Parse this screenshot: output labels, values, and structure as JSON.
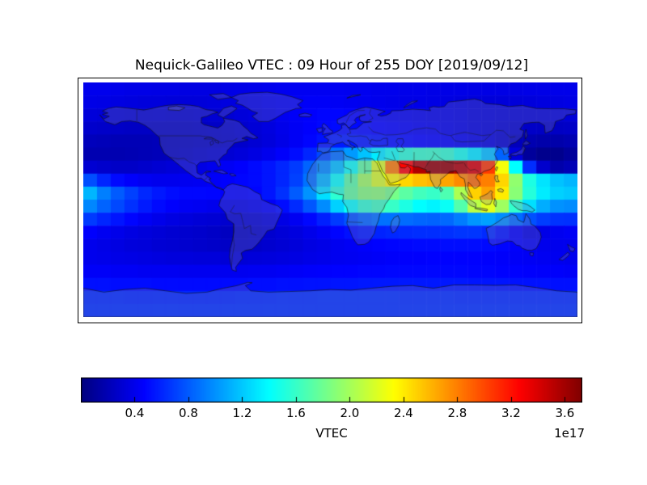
{
  "figure": {
    "title": "Nequick-Galileo VTEC : 09 Hour of 255 DOY [2019/09/12]",
    "background_color": "#ffffff"
  },
  "chart_data": {
    "type": "heatmap",
    "title": "Nequick-Galileo VTEC : 09 Hour of 255 DOY [2019/09/12]",
    "model": "Nequick-Galileo",
    "quantity": "VTEC",
    "hour": "09",
    "day_of_year": "255",
    "date": "2019/09/12",
    "projection": "equirectangular",
    "map_extent": {
      "lon": [
        -180,
        180
      ],
      "lat": [
        -90,
        90
      ]
    },
    "colormap": "jet",
    "vmin": 0,
    "vmax": 3.73,
    "scale_factor": "1e17",
    "legend_position": "bottom",
    "grid_lines": false,
    "colorbar": {
      "orientation": "horizontal",
      "label": "VTEC",
      "offset_text": "1e17",
      "ticks": [
        0.4,
        0.8,
        1.2,
        1.6,
        2.0,
        2.4,
        2.8,
        3.2,
        3.6
      ],
      "tick_labels": [
        "0.4",
        "0.8",
        "1.2",
        "1.6",
        "2.0",
        "2.4",
        "2.8",
        "3.2",
        "3.6"
      ]
    },
    "grid": {
      "description": "VTEC values (x1e17) on 10-degree cells; rows north to south (lat centers 85..-85), cols west to east (lon centers -175..175)",
      "lon_center_start": -175,
      "lon_step": 10,
      "lat_center_start": 85,
      "lat_step": -10,
      "values": [
        [
          0.4,
          0.4,
          0.39,
          0.38,
          0.38,
          0.37,
          0.37,
          0.36,
          0.36,
          0.36,
          0.37,
          0.38,
          0.39,
          0.4,
          0.41,
          0.42,
          0.42,
          0.42,
          0.42,
          0.41,
          0.41,
          0.4,
          0.4,
          0.39,
          0.39,
          0.38,
          0.38,
          0.38,
          0.37,
          0.37,
          0.37,
          0.37,
          0.38,
          0.38,
          0.39,
          0.39
        ],
        [
          0.38,
          0.37,
          0.36,
          0.35,
          0.34,
          0.34,
          0.33,
          0.33,
          0.33,
          0.34,
          0.35,
          0.36,
          0.38,
          0.4,
          0.42,
          0.43,
          0.44,
          0.44,
          0.43,
          0.42,
          0.41,
          0.4,
          0.39,
          0.38,
          0.38,
          0.37,
          0.36,
          0.35,
          0.34,
          0.33,
          0.33,
          0.33,
          0.34,
          0.35,
          0.36,
          0.37
        ],
        [
          0.33,
          0.32,
          0.31,
          0.3,
          0.29,
          0.29,
          0.28,
          0.28,
          0.29,
          0.3,
          0.31,
          0.33,
          0.35,
          0.38,
          0.41,
          0.44,
          0.46,
          0.48,
          0.48,
          0.47,
          0.45,
          0.43,
          0.41,
          0.4,
          0.39,
          0.38,
          0.37,
          0.36,
          0.34,
          0.33,
          0.32,
          0.31,
          0.31,
          0.31,
          0.32,
          0.32
        ],
        [
          0.28,
          0.27,
          0.26,
          0.25,
          0.25,
          0.24,
          0.24,
          0.24,
          0.25,
          0.26,
          0.27,
          0.29,
          0.32,
          0.35,
          0.39,
          0.43,
          0.46,
          0.49,
          0.5,
          0.5,
          0.49,
          0.47,
          0.45,
          0.43,
          0.41,
          0.4,
          0.38,
          0.36,
          0.34,
          0.32,
          0.3,
          0.28,
          0.26,
          0.25,
          0.25,
          0.26
        ],
        [
          0.22,
          0.21,
          0.2,
          0.2,
          0.2,
          0.21,
          0.22,
          0.23,
          0.24,
          0.25,
          0.26,
          0.28,
          0.31,
          0.34,
          0.38,
          0.43,
          0.48,
          0.53,
          0.56,
          0.56,
          0.55,
          0.53,
          0.51,
          0.49,
          0.47,
          0.45,
          0.43,
          0.4,
          0.37,
          0.33,
          0.28,
          0.22,
          0.18,
          0.16,
          0.16,
          0.18
        ],
        [
          0.18,
          0.18,
          0.18,
          0.19,
          0.2,
          0.21,
          0.23,
          0.25,
          0.27,
          0.29,
          0.31,
          0.33,
          0.36,
          0.4,
          0.45,
          0.51,
          0.6,
          0.73,
          0.88,
          1.03,
          1.18,
          1.33,
          1.46,
          1.56,
          1.6,
          1.61,
          1.58,
          1.48,
          1.33,
          1.18,
          0.83,
          0.33,
          0.1,
          0.05,
          0.05,
          0.1
        ],
        [
          0.3,
          0.28,
          0.26,
          0.26,
          0.28,
          0.3,
          0.32,
          0.34,
          0.37,
          0.4,
          0.43,
          0.46,
          0.5,
          0.54,
          0.6,
          0.68,
          0.83,
          0.98,
          1.18,
          1.45,
          1.75,
          2.2,
          2.8,
          3.25,
          3.55,
          3.65,
          3.65,
          3.55,
          3.4,
          3.05,
          2.3,
          1.4,
          0.63,
          0.28,
          0.16,
          0.2
        ],
        [
          0.75,
          0.6,
          0.5,
          0.45,
          0.42,
          0.4,
          0.4,
          0.41,
          0.42,
          0.44,
          0.46,
          0.48,
          0.5,
          0.54,
          0.6,
          0.7,
          0.88,
          1.13,
          1.43,
          1.73,
          1.98,
          2.18,
          2.36,
          2.48,
          2.56,
          2.6,
          2.66,
          2.76,
          2.86,
          2.8,
          2.48,
          1.93,
          1.5,
          1.3,
          1.18,
          1.13
        ],
        [
          1.13,
          0.93,
          0.8,
          0.7,
          0.61,
          0.55,
          0.51,
          0.49,
          0.49,
          0.48,
          0.46,
          0.45,
          0.48,
          0.54,
          0.64,
          0.8,
          1.0,
          1.28,
          1.56,
          1.76,
          1.88,
          1.9,
          1.83,
          1.73,
          1.64,
          1.6,
          1.68,
          2.03,
          2.5,
          2.68,
          2.4,
          1.9,
          1.53,
          1.33,
          1.23,
          1.2
        ],
        [
          0.96,
          0.83,
          0.73,
          0.64,
          0.56,
          0.5,
          0.46,
          0.43,
          0.42,
          0.4,
          0.38,
          0.38,
          0.4,
          0.44,
          0.51,
          0.62,
          0.78,
          0.98,
          1.23,
          1.43,
          1.58,
          1.64,
          1.6,
          1.5,
          1.4,
          1.36,
          1.43,
          1.7,
          2.08,
          2.23,
          1.98,
          1.58,
          1.28,
          1.1,
          1.0,
          0.98
        ],
        [
          0.68,
          0.6,
          0.54,
          0.48,
          0.43,
          0.39,
          0.36,
          0.34,
          0.32,
          0.31,
          0.29,
          0.29,
          0.3,
          0.33,
          0.37,
          0.42,
          0.49,
          0.58,
          0.68,
          0.77,
          0.84,
          0.88,
          0.88,
          0.86,
          0.84,
          0.83,
          0.85,
          0.92,
          1.01,
          1.05,
          0.98,
          0.86,
          0.76,
          0.69,
          0.65,
          0.64
        ],
        [
          0.46,
          0.42,
          0.39,
          0.36,
          0.34,
          0.32,
          0.3,
          0.29,
          0.28,
          0.26,
          0.24,
          0.24,
          0.26,
          0.29,
          0.32,
          0.35,
          0.39,
          0.43,
          0.48,
          0.52,
          0.56,
          0.59,
          0.61,
          0.62,
          0.63,
          0.63,
          0.64,
          0.66,
          0.66,
          0.62,
          0.54,
          0.44,
          0.36,
          0.38,
          0.41,
          0.43
        ],
        [
          0.4,
          0.38,
          0.36,
          0.34,
          0.33,
          0.31,
          0.3,
          0.29,
          0.28,
          0.27,
          0.26,
          0.26,
          0.27,
          0.29,
          0.31,
          0.33,
          0.36,
          0.38,
          0.41,
          0.43,
          0.45,
          0.47,
          0.48,
          0.49,
          0.5,
          0.5,
          0.51,
          0.51,
          0.51,
          0.5,
          0.48,
          0.45,
          0.42,
          0.4,
          0.4,
          0.4
        ],
        [
          0.4,
          0.39,
          0.38,
          0.37,
          0.36,
          0.35,
          0.34,
          0.34,
          0.33,
          0.33,
          0.32,
          0.32,
          0.33,
          0.34,
          0.35,
          0.36,
          0.38,
          0.39,
          0.41,
          0.42,
          0.43,
          0.44,
          0.45,
          0.46,
          0.46,
          0.47,
          0.47,
          0.47,
          0.47,
          0.46,
          0.45,
          0.44,
          0.43,
          0.42,
          0.41,
          0.4
        ],
        [
          0.44,
          0.44,
          0.43,
          0.43,
          0.42,
          0.42,
          0.42,
          0.41,
          0.41,
          0.41,
          0.41,
          0.41,
          0.42,
          0.42,
          0.43,
          0.44,
          0.45,
          0.46,
          0.47,
          0.47,
          0.48,
          0.48,
          0.49,
          0.49,
          0.49,
          0.49,
          0.49,
          0.49,
          0.48,
          0.48,
          0.47,
          0.47,
          0.46,
          0.45,
          0.45,
          0.44
        ],
        [
          0.52,
          0.52,
          0.51,
          0.51,
          0.51,
          0.5,
          0.5,
          0.5,
          0.5,
          0.5,
          0.5,
          0.5,
          0.51,
          0.51,
          0.52,
          0.52,
          0.53,
          0.53,
          0.54,
          0.54,
          0.55,
          0.55,
          0.55,
          0.55,
          0.55,
          0.55,
          0.55,
          0.55,
          0.54,
          0.54,
          0.54,
          0.53,
          0.53,
          0.53,
          0.52,
          0.52
        ],
        [
          0.62,
          0.62,
          0.62,
          0.61,
          0.61,
          0.61,
          0.61,
          0.61,
          0.61,
          0.61,
          0.61,
          0.62,
          0.62,
          0.62,
          0.63,
          0.63,
          0.63,
          0.64,
          0.64,
          0.64,
          0.64,
          0.64,
          0.64,
          0.63,
          0.63,
          0.63,
          0.63,
          0.62,
          0.62,
          0.62,
          0.62,
          0.62,
          0.62,
          0.62,
          0.62,
          0.62
        ],
        [
          0.64,
          0.64,
          0.64,
          0.64,
          0.64,
          0.64,
          0.64,
          0.64,
          0.64,
          0.64,
          0.64,
          0.64,
          0.64,
          0.64,
          0.64,
          0.64,
          0.64,
          0.64,
          0.64,
          0.64,
          0.64,
          0.64,
          0.64,
          0.64,
          0.64,
          0.64,
          0.64,
          0.64,
          0.64,
          0.64,
          0.64,
          0.64,
          0.64,
          0.64,
          0.64,
          0.64
        ]
      ]
    }
  }
}
